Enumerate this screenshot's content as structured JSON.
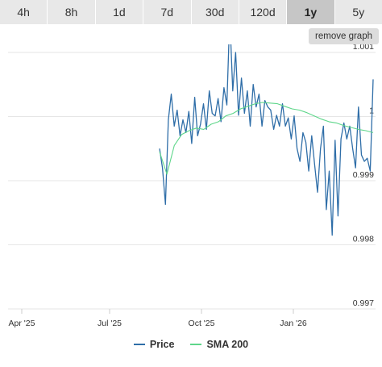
{
  "tabs": [
    {
      "label": "4h",
      "active": false
    },
    {
      "label": "8h",
      "active": false
    },
    {
      "label": "1d",
      "active": false
    },
    {
      "label": "7d",
      "active": false
    },
    {
      "label": "30d",
      "active": false
    },
    {
      "label": "120d",
      "active": false
    },
    {
      "label": "1y",
      "active": true
    },
    {
      "label": "5y",
      "active": false
    }
  ],
  "remove_graph_label": "remove graph",
  "colors": {
    "price": "#2f6ea8",
    "sma": "#5ed68a",
    "grid": "#e6e6e6",
    "text": "#333333"
  },
  "legend": [
    {
      "name": "Price",
      "color": "#2f6ea8"
    },
    {
      "name": "SMA 200",
      "color": "#5ed68a"
    }
  ],
  "chart_data": {
    "type": "line",
    "x_ticks": [
      "Apr '25",
      "Jul '25",
      "Oct '25",
      "Jan '26"
    ],
    "y_ticks": [
      "1.001",
      "1",
      "0.999",
      "0.998",
      "0.997"
    ],
    "ylim": [
      0.997,
      1.001
    ],
    "grid": true,
    "legend_position": "bottom",
    "series": [
      {
        "name": "Price",
        "color": "#2f6ea8",
        "values": [
          0.9995,
          0.9992,
          0.99863,
          0.99995,
          1.00035,
          0.99985,
          1.0001,
          0.9997,
          0.99995,
          0.99975,
          1.00008,
          0.99958,
          1.0003,
          0.9997,
          0.99988,
          1.0002,
          0.9998,
          1.0004,
          1.00005,
          1.00001,
          1.00028,
          0.99992,
          1.00045,
          1.00018,
          1.00158,
          1.0004,
          1.001,
          1.00002,
          1.0006,
          1.00005,
          1.0004,
          0.99985,
          1.0005,
          1.00015,
          1.00035,
          0.99985,
          1.00025,
          1.00015,
          1.0001,
          0.9998,
          1.00002,
          0.99985,
          1.0002,
          0.99985,
          0.99998,
          0.99965,
          1.00001,
          0.9995,
          0.9993,
          0.99975,
          0.9996,
          0.99915,
          0.9997,
          0.99925,
          0.99882,
          0.9995,
          0.99985,
          0.99855,
          0.99915,
          0.99815,
          0.99963,
          0.99845,
          0.99965,
          0.9999,
          0.99965,
          0.99985,
          0.9995,
          0.9992,
          1.00015,
          0.9994,
          0.9993,
          0.99935,
          0.99915,
          1.00058
        ]
      },
      {
        "name": "SMA 200",
        "color": "#5ed68a",
        "values": [
          0.99945,
          0.9991,
          0.99955,
          0.99972,
          0.99978,
          0.99982,
          0.9998,
          0.99988,
          0.99992,
          1.00001,
          1.00005,
          1.00012,
          1.00016,
          1.0002,
          1.00022,
          1.00021,
          1.0002,
          1.00016,
          1.00012,
          1.0001,
          1.00006,
          1.00001,
          0.99996,
          0.99992,
          0.9999,
          0.99986,
          0.99983,
          0.9998,
          0.99978,
          0.99975
        ]
      }
    ]
  }
}
